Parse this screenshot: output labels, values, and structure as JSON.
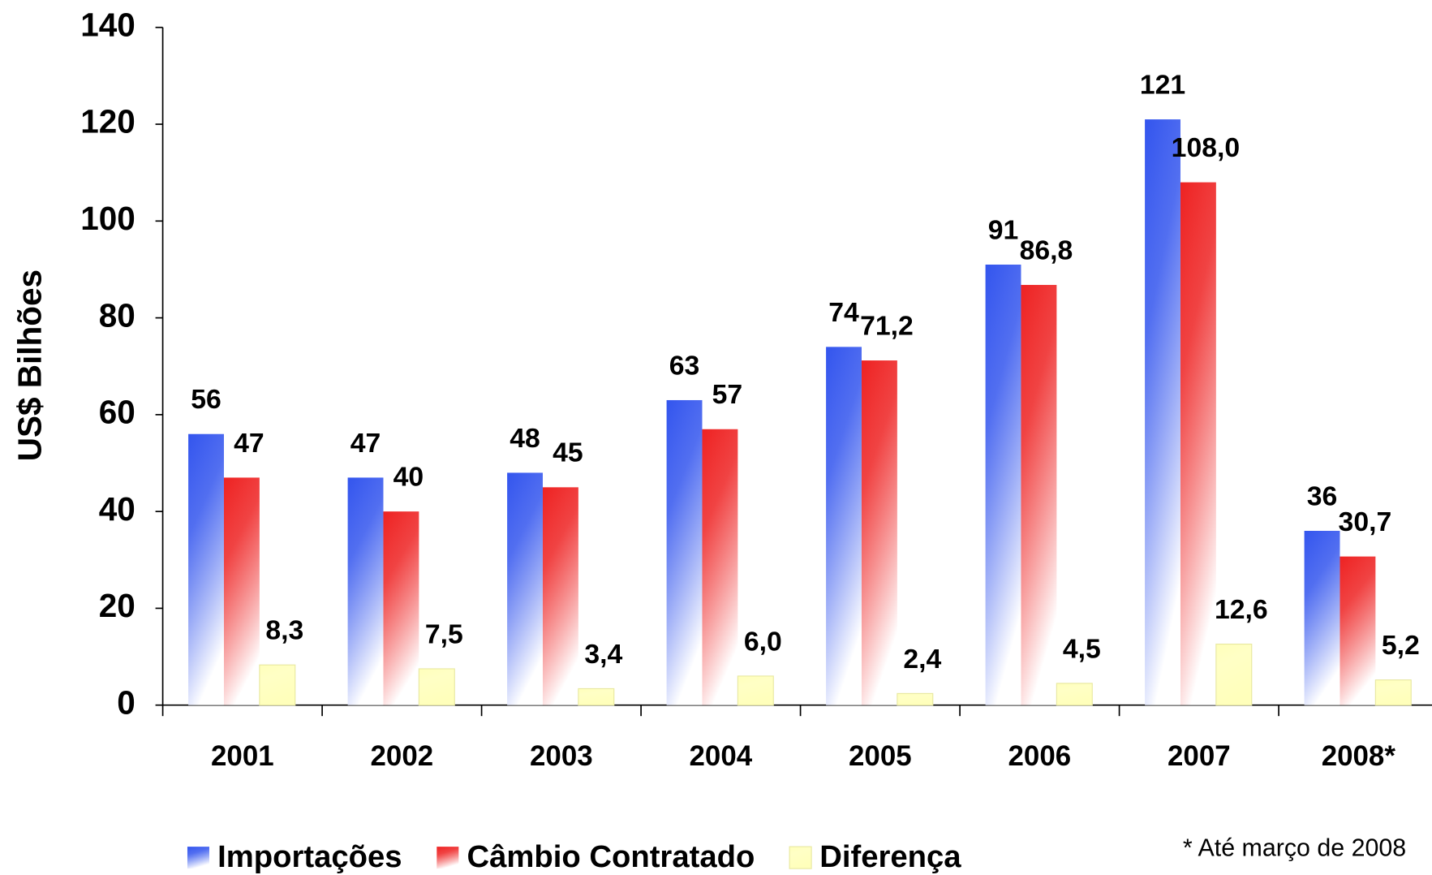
{
  "chart_data": {
    "type": "bar",
    "y_label": "US$ Bilhões",
    "footnote": "* Até março de 2008",
    "categories": [
      "2001",
      "2002",
      "2003",
      "2004",
      "2005",
      "2006",
      "2007",
      "2008*"
    ],
    "series": [
      {
        "name": "Importações",
        "color": "#3355ee",
        "values": [
          56,
          47,
          48,
          63,
          74,
          91,
          121,
          36
        ]
      },
      {
        "name": "Câmbio Contratado",
        "color": "#ee2222",
        "values": [
          47,
          40,
          45,
          57,
          71.2,
          86.8,
          108.0,
          30.7
        ],
        "value_labels": [
          "47",
          "40",
          "45",
          "57",
          "71,2",
          "86,8",
          "108,0",
          "30,7"
        ]
      },
      {
        "name": "Diferença",
        "color": "#ffffbb",
        "values": [
          8.3,
          7.5,
          3.4,
          6.0,
          2.4,
          4.5,
          12.6,
          5.2
        ],
        "value_labels": [
          "8,3",
          "7,5",
          "3,4",
          "6,0",
          "2,4",
          "4,5",
          "12,6",
          "5,2"
        ]
      }
    ],
    "ylim": [
      0,
      140
    ],
    "yticks": [
      0,
      20,
      40,
      60,
      80,
      100,
      120,
      140
    ]
  }
}
